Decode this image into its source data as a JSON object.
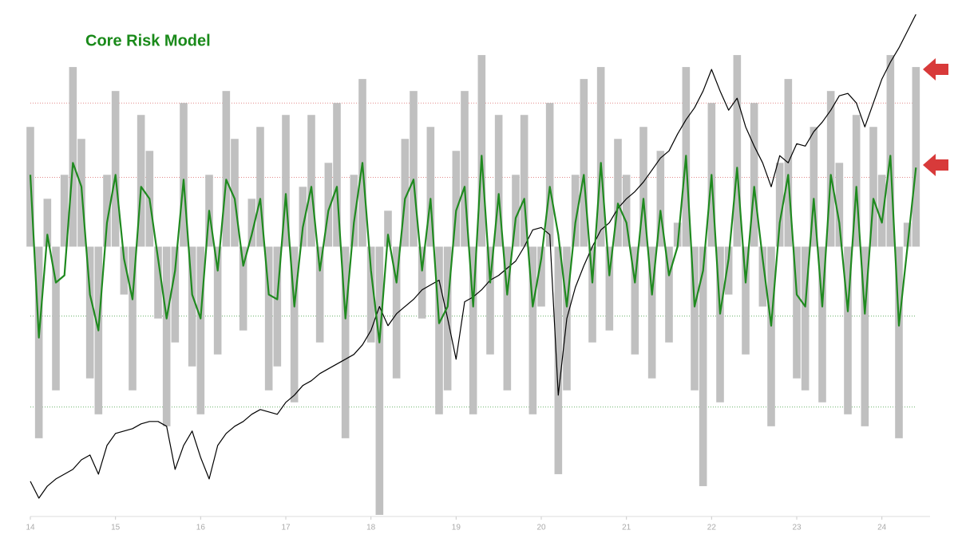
{
  "chart_data": {
    "type": "line",
    "title": "Core Risk Model",
    "xlim": [
      14,
      24.5
    ],
    "xticks": [
      14,
      15,
      16,
      17,
      18,
      19,
      20,
      21,
      22,
      23,
      24
    ],
    "ylim": [
      -112,
      98
    ],
    "reference_lines": [
      {
        "value": 60,
        "color": "#d04040"
      },
      {
        "value": 29,
        "color": "#d04040"
      },
      {
        "value": -29,
        "color": "#3a9a3a"
      },
      {
        "value": -67,
        "color": "#3a9a3a"
      }
    ],
    "x": [
      14.0,
      14.1,
      14.2,
      14.3,
      14.4,
      14.5,
      14.6,
      14.7,
      14.8,
      14.9,
      15.0,
      15.1,
      15.2,
      15.3,
      15.4,
      15.5,
      15.6,
      15.7,
      15.8,
      15.9,
      16.0,
      16.1,
      16.2,
      16.3,
      16.4,
      16.5,
      16.6,
      16.7,
      16.8,
      16.9,
      17.0,
      17.1,
      17.2,
      17.3,
      17.4,
      17.5,
      17.6,
      17.7,
      17.8,
      17.9,
      18.0,
      18.1,
      18.2,
      18.3,
      18.4,
      18.5,
      18.6,
      18.7,
      18.8,
      18.9,
      19.0,
      19.1,
      19.2,
      19.3,
      19.4,
      19.5,
      19.6,
      19.7,
      19.8,
      19.9,
      20.0,
      20.1,
      20.2,
      20.3,
      20.4,
      20.5,
      20.6,
      20.7,
      20.8,
      20.9,
      21.0,
      21.1,
      21.2,
      21.3,
      21.4,
      21.5,
      21.6,
      21.7,
      21.8,
      21.9,
      22.0,
      22.1,
      22.2,
      22.3,
      22.4,
      22.5,
      22.6,
      22.7,
      22.8,
      22.9,
      23.0,
      23.1,
      23.2,
      23.3,
      23.4,
      23.5,
      23.6,
      23.7,
      23.8,
      23.9,
      24.0,
      24.1,
      24.2,
      24.3,
      24.4
    ],
    "series": [
      {
        "kind": "bar",
        "color": "#c0c0c0",
        "values": [
          50,
          -80,
          20,
          -60,
          30,
          75,
          45,
          -55,
          -70,
          30,
          65,
          -20,
          -60,
          55,
          40,
          -30,
          -75,
          -40,
          60,
          -50,
          -70,
          30,
          -45,
          65,
          45,
          -35,
          20,
          50,
          -60,
          -50,
          55,
          -65,
          25,
          55,
          -40,
          35,
          60,
          -80,
          30,
          70,
          -40,
          -112,
          15,
          -55,
          45,
          65,
          -30,
          50,
          -70,
          -60,
          40,
          65,
          -70,
          80,
          -45,
          55,
          -60,
          30,
          55,
          -70,
          -25,
          60,
          -95,
          -60,
          30,
          70,
          -40,
          75,
          -35,
          45,
          30,
          -45,
          50,
          -55,
          40,
          -40,
          10,
          75,
          -60,
          -100,
          60,
          -65,
          -20,
          80,
          -45,
          60,
          -25,
          -75,
          35,
          70,
          -55,
          -60,
          50,
          -65,
          65,
          35,
          -70,
          55,
          -75,
          50,
          30,
          80,
          -80,
          10,
          75
        ]
      },
      {
        "kind": "line",
        "color": "#000000",
        "values": [
          -98,
          -105,
          -100,
          -97,
          -95,
          -93,
          -89,
          -87,
          -95,
          -83,
          -78,
          -77,
          -76,
          -74,
          -73,
          -73,
          -75,
          -93,
          -83,
          -77,
          -88,
          -97,
          -83,
          -78,
          -75,
          -73,
          -70,
          -68,
          -69,
          -70,
          -65,
          -62,
          -58,
          -56,
          -53,
          -51,
          -49,
          -47,
          -45,
          -41,
          -35,
          -25,
          -33,
          -28,
          -25,
          -22,
          -18,
          -16,
          -14,
          -30,
          -47,
          -23,
          -21,
          -18,
          -14,
          -12,
          -9,
          -6,
          0,
          7,
          8,
          5,
          -62,
          -30,
          -17,
          -8,
          0,
          7,
          10,
          16,
          20,
          23,
          27,
          32,
          37,
          40,
          47,
          53,
          58,
          65,
          74,
          65,
          57,
          62,
          50,
          42,
          35,
          25,
          38,
          35,
          43,
          42,
          48,
          52,
          57,
          63,
          64,
          60,
          50,
          60,
          70,
          77,
          83,
          90,
          97
        ]
      },
      {
        "kind": "line",
        "color": "#1f8a1f",
        "values": [
          30,
          -38,
          5,
          -15,
          -12,
          35,
          25,
          -20,
          -35,
          10,
          30,
          -5,
          -22,
          25,
          20,
          -5,
          -30,
          -10,
          28,
          -20,
          -30,
          15,
          -10,
          28,
          20,
          -8,
          5,
          20,
          -20,
          -22,
          22,
          -25,
          8,
          25,
          -10,
          15,
          25,
          -30,
          10,
          35,
          -10,
          -40,
          5,
          -15,
          20,
          28,
          -10,
          20,
          -32,
          -25,
          15,
          25,
          -25,
          38,
          -15,
          22,
          -20,
          12,
          20,
          -25,
          -5,
          25,
          5,
          -25,
          10,
          30,
          -15,
          35,
          -12,
          18,
          10,
          -15,
          20,
          -20,
          15,
          -12,
          0,
          38,
          -25,
          -10,
          30,
          -28,
          -5,
          33,
          -15,
          25,
          -5,
          -33,
          10,
          30,
          -20,
          -25,
          20,
          -25,
          30,
          10,
          -27,
          25,
          -28,
          20,
          10,
          38,
          -33,
          0,
          33
        ]
      }
    ]
  }
}
